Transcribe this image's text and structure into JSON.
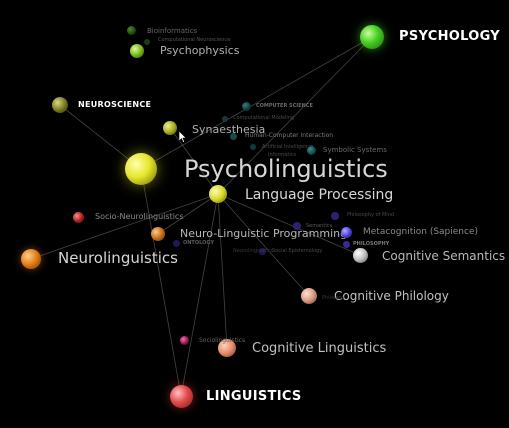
{
  "colors": {
    "background": "#000000",
    "green": "#44cc22",
    "yellow": "#e6e62a",
    "olive": "#9a9a20",
    "orange": "#e07a14",
    "red": "#e24a4a",
    "salmon": "#e58a6a",
    "white": "#dddddd",
    "purple": "#4a3ad8",
    "teal": "#2a8a8a"
  },
  "nodes": {
    "psychology": {
      "label": "PSYCHOLOGY",
      "color": "green"
    },
    "neuroscience": {
      "label": "NEUROSCIENCE",
      "color": "olive"
    },
    "linguistics": {
      "label": "LINGUISTICS",
      "color": "red"
    },
    "psycholinguistics": {
      "label": "Psycholinguistics",
      "color": "yellow"
    },
    "language_processing": {
      "label": "Language Processing",
      "color": "yellow"
    },
    "synaesthesia": {
      "label": "Synaesthesia",
      "color": "olive"
    },
    "psychophysics": {
      "label": "Psychophysics",
      "color": "green"
    },
    "bioinformatics": {
      "label": "Bioinformatics",
      "color": "green"
    },
    "computational_neuroscience": {
      "label": "Computational Neuroscience",
      "color": "green"
    },
    "neurolinguistics": {
      "label": "Neurolinguistics",
      "color": "orange"
    },
    "nlp": {
      "label": "Neuro-Linguistic Programming",
      "color": "orange"
    },
    "socio_neurolinguistics": {
      "label": "Socio-Neurolinguistics",
      "color": "red"
    },
    "cognitive_semantics": {
      "label": "Cognitive Semantics",
      "color": "white"
    },
    "cognitive_philology": {
      "label": "Cognitive Philology",
      "color": "salmon"
    },
    "cognitive_linguistics": {
      "label": "Cognitive Linguistics",
      "color": "salmon"
    },
    "sociolinguistics": {
      "label": "Sociolinguistics",
      "color": "red"
    },
    "metacognition": {
      "label": "Metacognition (Sapience)",
      "color": "purple"
    },
    "philosophy": {
      "label": "PHILOSOPHY",
      "color": "purple"
    },
    "philosophy_of_mind": {
      "label": "Philosophy of Mind",
      "color": "purple"
    },
    "computer_science": {
      "label": "COMPUTER SCIENCE",
      "color": "teal"
    },
    "computational_modeling": {
      "label": "Computational Modeling",
      "color": "teal"
    },
    "hci": {
      "label": "Human-Computer Interaction",
      "color": "teal"
    },
    "symbolic_systems": {
      "label": "Symbolic Systems",
      "color": "teal"
    },
    "artificial_intelligence": {
      "label": "Artificial Intelligence",
      "color": "teal"
    },
    "informatics": {
      "label": "Informatics",
      "color": "teal"
    },
    "semantics": {
      "label": "Semantics",
      "color": "purple"
    },
    "social_epistemology": {
      "label": "Social Epistemology",
      "color": "purple"
    },
    "ontology": {
      "label": "ONTOLOGY",
      "color": "purple"
    },
    "neurolinguistics_small": {
      "label": "Neurolinguistics",
      "color": "purple"
    },
    "philology_small": {
      "label": "Philology",
      "color": "salmon"
    }
  }
}
